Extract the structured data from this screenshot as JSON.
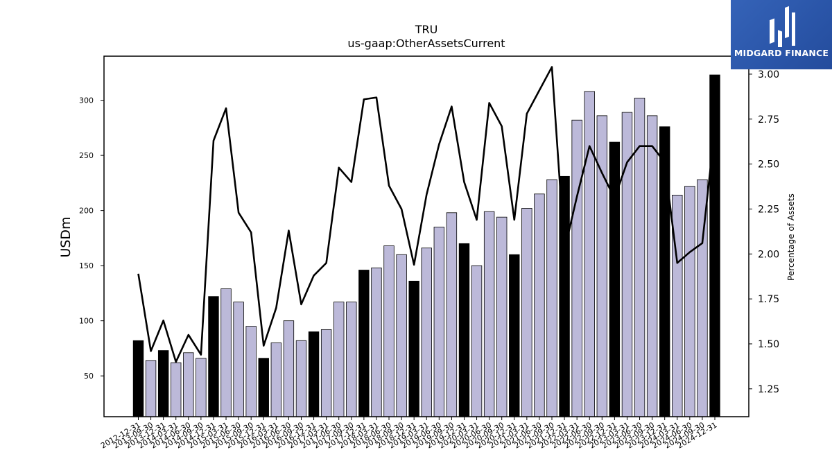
{
  "brand": {
    "logo_text": "MIDGARD FINANCE",
    "background": "#2d5bb0"
  },
  "chart_data": {
    "type": "bar",
    "title": "TRU",
    "subtitle": "us-gaap:OtherAssetsCurrent",
    "ylabel": "USDm",
    "y2label": "Percentage of Assets",
    "ylim": [
      13,
      340
    ],
    "y2lim": [
      1.095,
      3.1
    ],
    "yticks": [
      50,
      100,
      150,
      200,
      250,
      300
    ],
    "y2ticks": [
      1.25,
      1.5,
      1.75,
      2.0,
      2.25,
      2.5,
      2.75,
      3.0
    ],
    "y2tick_labels": [
      "1.25",
      "1.50",
      "1.75",
      "2.00",
      "2.25",
      "2.50",
      "2.75",
      "3.00"
    ],
    "bar_colors": {
      "fiscal_year_end": "#000000",
      "quarter": "#bcb9d9",
      "edge": "#000000"
    },
    "line_color": "#000000",
    "categories": [
      "2012-12-31",
      "2013-09-30",
      "2013-12-31",
      "2014-03-31",
      "2014-06-30",
      "2014-09-30",
      "2014-12-31",
      "2015-03-31",
      "2015-06-30",
      "2015-09-30",
      "2015-12-31",
      "2016-03-31",
      "2016-06-30",
      "2016-09-30",
      "2016-12-31",
      "2017-03-31",
      "2017-06-30",
      "2017-09-30",
      "2017-12-31",
      "2018-03-31",
      "2018-06-30",
      "2018-09-30",
      "2018-12-31",
      "2019-03-31",
      "2019-06-30",
      "2019-09-30",
      "2019-12-31",
      "2020-03-31",
      "2020-06-30",
      "2020-09-30",
      "2020-12-31",
      "2021-03-31",
      "2021-06-30",
      "2021-09-30",
      "2021-12-31",
      "2022-03-31",
      "2022-06-30",
      "2022-09-30",
      "2022-12-31",
      "2023-03-31",
      "2023-06-30",
      "2023-09-30",
      "2023-12-31",
      "2024-03-31",
      "2024-06-30",
      "2024-09-30",
      "2024-12-31"
    ],
    "series": [
      {
        "type": "bar",
        "axis": "left",
        "values": [
          82,
          64,
          73,
          62,
          71,
          66,
          122,
          129,
          117,
          95,
          66,
          80,
          100,
          82,
          90,
          92,
          117,
          117,
          146,
          148,
          168,
          160,
          136,
          166,
          185,
          198,
          170,
          150,
          199,
          194,
          160,
          202,
          215,
          228,
          231,
          282,
          308,
          286,
          262,
          289,
          302,
          286,
          276,
          214,
          222,
          228,
          323
        ],
        "year_end": [
          true,
          false,
          true,
          false,
          false,
          false,
          true,
          false,
          false,
          false,
          true,
          false,
          false,
          false,
          true,
          false,
          false,
          false,
          true,
          false,
          false,
          false,
          true,
          false,
          false,
          false,
          true,
          false,
          false,
          false,
          true,
          false,
          false,
          false,
          true,
          false,
          false,
          false,
          true,
          false,
          false,
          false,
          true,
          false,
          false,
          false,
          true
        ]
      },
      {
        "type": "line",
        "axis": "right",
        "values": [
          1.89,
          1.46,
          1.63,
          1.4,
          1.55,
          1.44,
          2.63,
          2.81,
          2.23,
          2.12,
          1.49,
          1.7,
          2.13,
          1.72,
          1.88,
          1.95,
          2.48,
          2.4,
          2.86,
          2.87,
          2.38,
          2.25,
          1.94,
          2.33,
          2.61,
          2.82,
          2.4,
          2.19,
          2.84,
          2.71,
          2.19,
          2.78,
          2.91,
          3.04,
          2.02,
          2.32,
          2.6,
          2.45,
          2.31,
          2.51,
          2.6,
          2.6,
          2.51,
          1.95,
          2.01,
          2.06,
          2.7
        ]
      }
    ]
  }
}
